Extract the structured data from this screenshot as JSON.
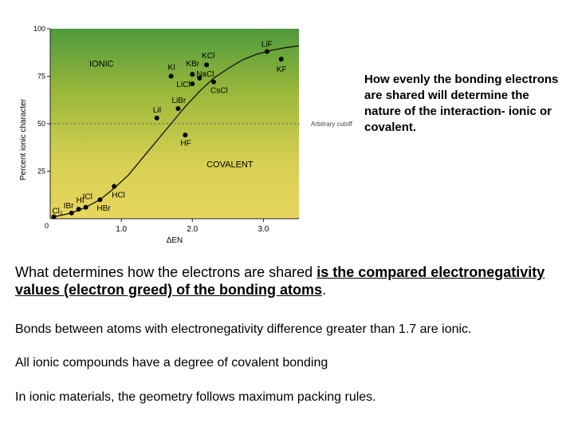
{
  "chart_data": {
    "type": "scatter",
    "xlabel": "ΔEN",
    "ylabel": "Percent ionic character",
    "xlim": [
      0,
      3.5
    ],
    "ylim": [
      0,
      100
    ],
    "x_ticks": [
      {
        "value": 1.0,
        "label": "1.0"
      },
      {
        "value": 2.0,
        "label": "2.0"
      },
      {
        "value": 3.0,
        "label": "3.0"
      }
    ],
    "x_zero_label": "0",
    "y_ticks": [
      {
        "value": 100,
        "label": "100"
      },
      {
        "value": 75,
        "label": "75"
      },
      {
        "value": 50,
        "label": "50"
      },
      {
        "value": 25,
        "label": "25"
      }
    ],
    "background_gradient": [
      "#4f9a3c",
      "#9db93b",
      "#d6cf52",
      "#e8d65e"
    ],
    "region_labels": [
      {
        "text": "IONIC",
        "x": 0.55,
        "y": 80
      },
      {
        "text": "COVALENT",
        "x": 2.2,
        "y": 27
      }
    ],
    "cutoff": {
      "value": 50,
      "label": "Arbitrary cutoff"
    },
    "curve": [
      [
        0.05,
        1
      ],
      [
        0.3,
        3
      ],
      [
        0.5,
        6
      ],
      [
        0.7,
        10
      ],
      [
        0.9,
        16
      ],
      [
        1.1,
        23
      ],
      [
        1.3,
        32
      ],
      [
        1.5,
        41
      ],
      [
        1.7,
        50
      ],
      [
        1.9,
        59
      ],
      [
        2.1,
        67
      ],
      [
        2.3,
        74
      ],
      [
        2.5,
        79
      ],
      [
        2.7,
        83.5
      ],
      [
        2.9,
        86.5
      ],
      [
        3.1,
        88.5
      ],
      [
        3.3,
        90
      ],
      [
        3.5,
        91
      ]
    ],
    "points": [
      {
        "label": "Cl₂",
        "x": 0.05,
        "y": 1,
        "label_dx": -2,
        "label_dy": -4,
        "anchor": "start"
      },
      {
        "label": "IBr",
        "x": 0.3,
        "y": 3,
        "label_dx": -10,
        "label_dy": -6,
        "anchor": "start"
      },
      {
        "label": "HI",
        "x": 0.4,
        "y": 5,
        "label_dx": -3,
        "label_dy": -8,
        "anchor": "start"
      },
      {
        "label": "ICl",
        "x": 0.5,
        "y": 6,
        "label_dx": -4,
        "label_dy": -10,
        "anchor": "start"
      },
      {
        "label": "HBr",
        "x": 0.7,
        "y": 10,
        "label_dx": -4,
        "label_dy": 14,
        "anchor": "start"
      },
      {
        "label": "HCl",
        "x": 0.9,
        "y": 17,
        "label_dx": -3,
        "label_dy": 14,
        "anchor": "start"
      },
      {
        "label": "HF",
        "x": 1.9,
        "y": 44,
        "label_dx": -6,
        "label_dy": 13,
        "anchor": "start"
      },
      {
        "label": "LiI",
        "x": 1.5,
        "y": 53,
        "label_dx": -5,
        "label_dy": -7,
        "anchor": "start"
      },
      {
        "label": "LiBr",
        "x": 1.8,
        "y": 58,
        "label_dx": -8,
        "label_dy": -7,
        "anchor": "start"
      },
      {
        "label": "KI",
        "x": 1.7,
        "y": 75,
        "label_dx": -4,
        "label_dy": -8,
        "anchor": "start"
      },
      {
        "label": "LiCl",
        "x": 2.0,
        "y": 71,
        "label_dx": -20,
        "label_dy": 4,
        "anchor": "start"
      },
      {
        "label": "KBr",
        "x": 2.0,
        "y": 76,
        "label_dx": -8,
        "label_dy": -10,
        "anchor": "start"
      },
      {
        "label": "NaCl",
        "x": 2.1,
        "y": 74,
        "label_dx": -4,
        "label_dy": -2,
        "anchor": "start"
      },
      {
        "label": "KCl",
        "x": 2.2,
        "y": 81,
        "label_dx": -6,
        "label_dy": -8,
        "anchor": "start"
      },
      {
        "label": "CsCl",
        "x": 2.3,
        "y": 72,
        "label_dx": -4,
        "label_dy": 14,
        "anchor": "start"
      },
      {
        "label": "LiF",
        "x": 3.05,
        "y": 88,
        "label_dx": -7,
        "label_dy": -6,
        "anchor": "start"
      },
      {
        "label": "KF",
        "x": 3.25,
        "y": 84,
        "label_dx": -6,
        "label_dy": 16,
        "anchor": "start"
      }
    ]
  },
  "side_note": "How evenly the bonding electrons are shared will determine the nature of the interaction- ionic or covalent.",
  "main_question": {
    "lead": "What determines how the electrons are shared ",
    "emphasis": "is the compared electronegativity values (electron greed) of the bonding atoms",
    "tail": "."
  },
  "paragraphs": [
    "Bonds between atoms with electronegativity difference greater than 1.7 are ionic.",
    "All ionic compounds have a degree of covalent bonding",
    "In ionic materials, the geometry follows maximum packing rules."
  ]
}
